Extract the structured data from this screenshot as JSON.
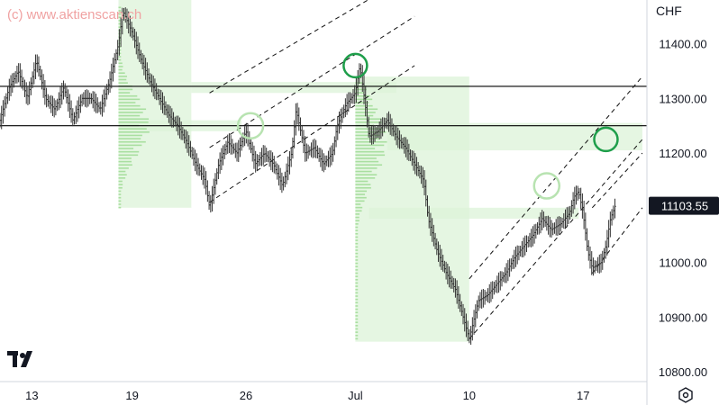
{
  "watermark": "(c) www.aktienscan.ch",
  "currency": "CHF",
  "icons": {
    "logo": "tradingview-logo",
    "settings": "settings-hex-icon"
  },
  "colors": {
    "candle": "#333333",
    "volume_profile": "#a9dfa0",
    "zone": "#dcf3d8",
    "circle_dark": "#1e9e4a",
    "circle_light": "#b8e3b1",
    "line": "#000000",
    "price_tag_bg": "#131722",
    "price_tag_text": "#ffffff"
  },
  "chart_data": {
    "type": "ohlc",
    "instrument_note": "",
    "y_axis": {
      "ticks": [
        10800,
        10900,
        11000,
        11100,
        11200,
        11300,
        11400
      ],
      "tick_labels": [
        "10800.00",
        "10900.00",
        "11000.00",
        "11100.00",
        "11200.00",
        "11300.00",
        "11400.00"
      ],
      "range": [
        10782,
        11480
      ]
    },
    "x_axis": {
      "tick_labels": [
        "13",
        "19",
        "26",
        "Jul",
        "10",
        "17"
      ],
      "tick_positions": [
        0,
        22,
        47,
        71,
        96,
        121
      ],
      "range": [
        -7,
        135
      ]
    },
    "last_price": "11103.55",
    "last_price_value": 11103.55,
    "horizontal_lines": [
      11250,
      11322
    ],
    "price_path": [
      {
        "t": -7,
        "p": 11260
      },
      {
        "t": -5,
        "p": 11320
      },
      {
        "t": -3,
        "p": 11350
      },
      {
        "t": -1,
        "p": 11300
      },
      {
        "t": 1,
        "p": 11370
      },
      {
        "t": 3,
        "p": 11300
      },
      {
        "t": 5,
        "p": 11280
      },
      {
        "t": 7,
        "p": 11320
      },
      {
        "t": 9,
        "p": 11260
      },
      {
        "t": 11,
        "p": 11300
      },
      {
        "t": 13,
        "p": 11300
      },
      {
        "t": 15,
        "p": 11280
      },
      {
        "t": 17,
        "p": 11330
      },
      {
        "t": 19,
        "p": 11400
      },
      {
        "t": 20,
        "p": 11460
      },
      {
        "t": 22,
        "p": 11420
      },
      {
        "t": 24,
        "p": 11370
      },
      {
        "t": 26,
        "p": 11330
      },
      {
        "t": 28,
        "p": 11300
      },
      {
        "t": 30,
        "p": 11270
      },
      {
        "t": 32,
        "p": 11250
      },
      {
        "t": 34,
        "p": 11220
      },
      {
        "t": 36,
        "p": 11180
      },
      {
        "t": 38,
        "p": 11150
      },
      {
        "t": 39,
        "p": 11100
      },
      {
        "t": 41,
        "p": 11180
      },
      {
        "t": 43,
        "p": 11220
      },
      {
        "t": 45,
        "p": 11200
      },
      {
        "t": 47,
        "p": 11240
      },
      {
        "t": 49,
        "p": 11180
      },
      {
        "t": 51,
        "p": 11200
      },
      {
        "t": 53,
        "p": 11180
      },
      {
        "t": 55,
        "p": 11140
      },
      {
        "t": 57,
        "p": 11200
      },
      {
        "t": 58,
        "p": 11280
      },
      {
        "t": 60,
        "p": 11200
      },
      {
        "t": 62,
        "p": 11210
      },
      {
        "t": 64,
        "p": 11180
      },
      {
        "t": 66,
        "p": 11200
      },
      {
        "t": 67,
        "p": 11250
      },
      {
        "t": 69,
        "p": 11290
      },
      {
        "t": 71,
        "p": 11310
      },
      {
        "t": 72,
        "p": 11360
      },
      {
        "t": 73,
        "p": 11300
      },
      {
        "t": 74,
        "p": 11230
      },
      {
        "t": 76,
        "p": 11240
      },
      {
        "t": 78,
        "p": 11260
      },
      {
        "t": 80,
        "p": 11230
      },
      {
        "t": 82,
        "p": 11210
      },
      {
        "t": 84,
        "p": 11180
      },
      {
        "t": 86,
        "p": 11150
      },
      {
        "t": 87,
        "p": 11080
      },
      {
        "t": 89,
        "p": 11020
      },
      {
        "t": 91,
        "p": 10980
      },
      {
        "t": 93,
        "p": 10950
      },
      {
        "t": 95,
        "p": 10890
      },
      {
        "t": 96,
        "p": 10860
      },
      {
        "t": 98,
        "p": 10930
      },
      {
        "t": 100,
        "p": 10940
      },
      {
        "t": 102,
        "p": 10960
      },
      {
        "t": 104,
        "p": 10980
      },
      {
        "t": 106,
        "p": 11010
      },
      {
        "t": 108,
        "p": 11030
      },
      {
        "t": 110,
        "p": 11050
      },
      {
        "t": 112,
        "p": 11080
      },
      {
        "t": 114,
        "p": 11060
      },
      {
        "t": 116,
        "p": 11070
      },
      {
        "t": 118,
        "p": 11090
      },
      {
        "t": 119,
        "p": 11120
      },
      {
        "t": 120,
        "p": 11130
      },
      {
        "t": 121,
        "p": 11090
      },
      {
        "t": 122,
        "p": 11020
      },
      {
        "t": 123,
        "p": 10990
      },
      {
        "t": 125,
        "p": 11000
      },
      {
        "t": 126,
        "p": 11030
      },
      {
        "t": 127,
        "p": 11080
      },
      {
        "t": 128,
        "p": 11103
      }
    ],
    "zones": [
      {
        "t0": 19,
        "t1": 35,
        "p0": 11100,
        "p1": 11480
      },
      {
        "t0": 19,
        "t1": 46,
        "p0": 11240,
        "p1": 11260
      },
      {
        "t0": 35,
        "t1": 80,
        "p0": 11310,
        "p1": 11330
      },
      {
        "t0": 71,
        "t1": 96,
        "p0": 10855,
        "p1": 11340
      },
      {
        "t0": 78,
        "t1": 134,
        "p0": 11205,
        "p1": 11255
      },
      {
        "t0": 74,
        "t1": 120,
        "p0": 11080,
        "p1": 11100
      }
    ],
    "volume_profiles": [
      {
        "t0": 19,
        "p0": 11100,
        "p1": 11470,
        "max_width": 7,
        "peak": 11250
      },
      {
        "t0": 71,
        "p0": 10860,
        "p1": 11330,
        "max_width": 7,
        "peak": 11220
      }
    ],
    "channel_lines": [
      {
        "t0": 39,
        "p0": 11110,
        "t1": 84,
        "p1": 11360
      },
      {
        "t0": 39,
        "p0": 11210,
        "t1": 84,
        "p1": 11450
      },
      {
        "t0": 39,
        "p0": 11310,
        "t1": 84,
        "p1": 11530
      },
      {
        "t0": 96,
        "p0": 10860,
        "t1": 134,
        "p1": 11225
      },
      {
        "t0": 96,
        "p0": 10970,
        "t1": 134,
        "p1": 11340
      },
      {
        "t0": 123,
        "p0": 10980,
        "t1": 134,
        "p1": 11100
      },
      {
        "t0": 123,
        "p0": 11100,
        "t1": 134,
        "p1": 11200
      }
    ],
    "circles": [
      {
        "t": 71,
        "p": 11360,
        "style": "dark"
      },
      {
        "t": 48,
        "p": 11250,
        "style": "light"
      },
      {
        "t": 113,
        "p": 11140,
        "style": "light"
      },
      {
        "t": 126,
        "p": 11225,
        "style": "dark"
      }
    ]
  }
}
